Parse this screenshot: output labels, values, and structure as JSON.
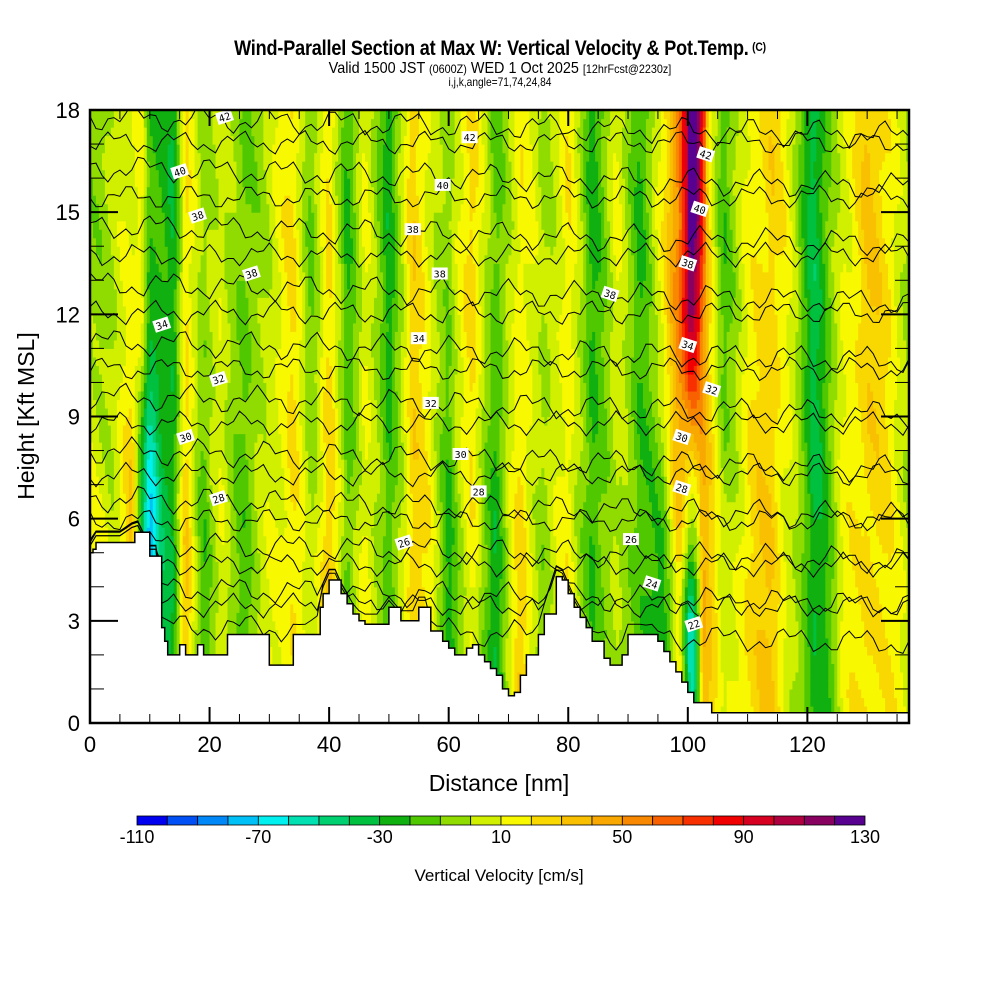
{
  "header": {
    "title": "Wind-Parallel Section at Max W: Vertical Velocity & Pot.Temp.",
    "copyright": "(C)",
    "valid_prefix": "Valid 1500 JST",
    "valid_utc": "(0600Z)",
    "valid_date": "WED 1 Oct 2025",
    "forecast": "[12hrFcst@2230z]",
    "indices": "i,j,k,angle=71,74,24,84"
  },
  "chart_data": {
    "type": "heatmap",
    "title": "Wind-Parallel Section at Max W: Vertical Velocity & Pot.Temp.",
    "xlabel": "Distance [nm]",
    "ylabel": "Height [Kft MSL]",
    "xlim": [
      0,
      137
    ],
    "ylim": [
      0,
      18
    ],
    "x_ticks": [
      "0",
      "20",
      "40",
      "60",
      "80",
      "100",
      "120"
    ],
    "x_tick_values": [
      0,
      20,
      40,
      60,
      80,
      100,
      120
    ],
    "y_ticks": [
      "0",
      "3",
      "6",
      "9",
      "12",
      "15",
      "18"
    ],
    "y_tick_values": [
      0,
      3,
      6,
      9,
      12,
      15,
      18
    ],
    "colorbar": {
      "label": "Vertical Velocity [cm/s]",
      "min": -110,
      "max": 130,
      "step": 10,
      "tick_labels": [
        "-110",
        "-70",
        "-30",
        "10",
        "50",
        "90",
        "130"
      ],
      "tick_values": [
        -110,
        -70,
        -30,
        10,
        50,
        90,
        130
      ],
      "colors": [
        "#0000f0",
        "#0050f5",
        "#0088f8",
        "#00c0f8",
        "#00f0f0",
        "#00e0b0",
        "#00d070",
        "#00c040",
        "#10b010",
        "#50c800",
        "#90dc00",
        "#d0f000",
        "#f8f800",
        "#f8d800",
        "#f8c000",
        "#f8a800",
        "#f88800",
        "#f86000",
        "#f83000",
        "#f00000",
        "#d80020",
        "#b00040",
        "#880060",
        "#580090"
      ]
    },
    "w_bands": {
      "description_units": "cm/s",
      "x": [
        0,
        4,
        7,
        8.5,
        10,
        12,
        14,
        16,
        19,
        22,
        26,
        30,
        34,
        37,
        40,
        43,
        46,
        50,
        54,
        57,
        60,
        64,
        68,
        72,
        76,
        80,
        84,
        88,
        92,
        96,
        98.5,
        100.5,
        101.5,
        102.5,
        104,
        106,
        110,
        114,
        118,
        121,
        123,
        126,
        130,
        134,
        137
      ],
      "w_upper": [
        -5,
        0,
        10,
        20,
        -20,
        -25,
        -30,
        25,
        -10,
        10,
        -15,
        5,
        20,
        -10,
        20,
        -20,
        10,
        -25,
        25,
        10,
        -10,
        30,
        -20,
        20,
        -5,
        20,
        -25,
        10,
        -20,
        15,
        60,
        120,
        100,
        50,
        10,
        -15,
        10,
        30,
        0,
        -35,
        -20,
        10,
        30,
        20,
        -5
      ],
      "w_lower": [
        20,
        10,
        40,
        -60,
        -100,
        -40,
        -30,
        35,
        -20,
        5,
        -15,
        10,
        20,
        0,
        40,
        -15,
        20,
        -20,
        30,
        15,
        -25,
        10,
        -30,
        30,
        -10,
        20,
        -25,
        5,
        -20,
        -25,
        15,
        -60,
        -30,
        45,
        30,
        0,
        25,
        30,
        0,
        -30,
        -20,
        10,
        25,
        15,
        10
      ]
    },
    "terrain": {
      "x": [
        0,
        0.5,
        1,
        5,
        7.5,
        8,
        10,
        11,
        12,
        12.5,
        13,
        14,
        15,
        16,
        17,
        18,
        19,
        22,
        23,
        24,
        26,
        28,
        30,
        31,
        34,
        38,
        38.5,
        39,
        40,
        41,
        42,
        43,
        44,
        45,
        46,
        48,
        50,
        52,
        54,
        55,
        56,
        57,
        59,
        60,
        61,
        62,
        63,
        64,
        65,
        66,
        67,
        68,
        69,
        70,
        71,
        72,
        73,
        75,
        76,
        78,
        79,
        80,
        81,
        82,
        83,
        84,
        86,
        87,
        89,
        90,
        94,
        95,
        96,
        97,
        98,
        99,
        100,
        101,
        103,
        104,
        105,
        110,
        137
      ],
      "h": [
        5.0,
        5.1,
        5.3,
        5.3,
        5.6,
        5.6,
        4.9,
        4.9,
        2.8,
        2.4,
        2.0,
        2.0,
        2.3,
        2.0,
        2.0,
        2.3,
        2.0,
        2.0,
        2.6,
        2.6,
        2.6,
        2.6,
        1.7,
        1.7,
        2.6,
        2.6,
        3.4,
        3.8,
        4.2,
        4.2,
        3.8,
        3.5,
        3.2,
        3.0,
        2.9,
        2.9,
        3.4,
        3.0,
        3.0,
        3.4,
        3.4,
        2.7,
        2.4,
        2.2,
        2.0,
        2.0,
        2.2,
        2.3,
        2.0,
        1.8,
        1.6,
        1.4,
        1.0,
        0.8,
        0.9,
        1.4,
        2.0,
        2.6,
        3.2,
        4.3,
        4.2,
        3.8,
        3.4,
        3.1,
        2.8,
        2.4,
        1.9,
        1.7,
        2.0,
        2.6,
        2.6,
        2.4,
        2.1,
        1.8,
        1.5,
        1.2,
        0.9,
        0.6,
        0.6,
        0.3,
        0.3,
        0.3,
        0.3
      ]
    },
    "theta_contours_K": {
      "levels": [
        22,
        24,
        26,
        28,
        30,
        32,
        34,
        36,
        38,
        40,
        42
      ],
      "base_heights_kft": [
        2.9,
        4.0,
        5.3,
        6.6,
        8.0,
        9.6,
        11.2,
        12.9,
        14.6,
        16.3,
        17.8
      ]
    },
    "contour_labels": [
      {
        "text": "42",
        "x": 22.5,
        "y": 17.8
      },
      {
        "text": "42",
        "x": 63.5,
        "y": 17.2
      },
      {
        "text": "42",
        "x": 103,
        "y": 16.7
      },
      {
        "text": "40",
        "x": 15,
        "y": 16.2
      },
      {
        "text": "40",
        "x": 59,
        "y": 15.8
      },
      {
        "text": "40",
        "x": 102,
        "y": 15.1
      },
      {
        "text": "38",
        "x": 18,
        "y": 14.9
      },
      {
        "text": "38",
        "x": 54,
        "y": 14.5
      },
      {
        "text": "38",
        "x": 100,
        "y": 13.5
      },
      {
        "text": "38",
        "x": 27,
        "y": 13.2
      },
      {
        "text": "38",
        "x": 58.5,
        "y": 13.2
      },
      {
        "text": "38",
        "x": 87,
        "y": 12.6
      },
      {
        "text": "34",
        "x": 12,
        "y": 11.7
      },
      {
        "text": "34",
        "x": 55,
        "y": 11.3
      },
      {
        "text": "34",
        "x": 100,
        "y": 11.1
      },
      {
        "text": "32",
        "x": 21.5,
        "y": 10.1
      },
      {
        "text": "32",
        "x": 57,
        "y": 9.4
      },
      {
        "text": "32",
        "x": 104,
        "y": 9.8
      },
      {
        "text": "30",
        "x": 16,
        "y": 8.4
      },
      {
        "text": "30",
        "x": 62,
        "y": 7.9
      },
      {
        "text": "30",
        "x": 99,
        "y": 8.4
      },
      {
        "text": "28",
        "x": 21.5,
        "y": 6.6
      },
      {
        "text": "28",
        "x": 65,
        "y": 6.8
      },
      {
        "text": "28",
        "x": 99,
        "y": 6.9
      },
      {
        "text": "26",
        "x": 52.5,
        "y": 5.3
      },
      {
        "text": "26",
        "x": 90.5,
        "y": 5.4
      },
      {
        "text": "24",
        "x": 94,
        "y": 4.1
      },
      {
        "text": "22",
        "x": 101,
        "y": 2.9
      }
    ]
  }
}
